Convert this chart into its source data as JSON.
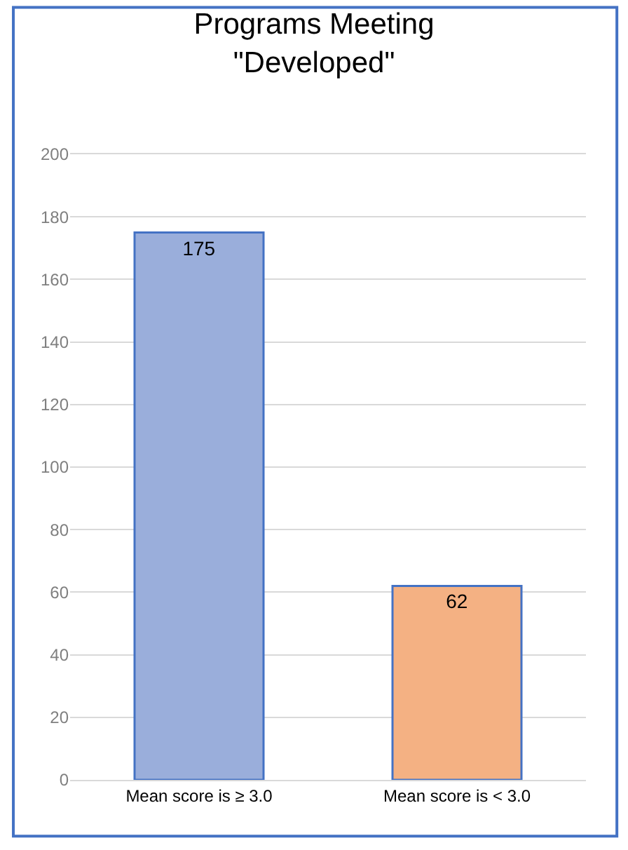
{
  "chart_data": {
    "type": "bar",
    "title": "Programs Meeting\n\"Developed\"",
    "categories": [
      "Mean score is ≥ 3.0",
      "Mean score is < 3.0"
    ],
    "values": [
      175,
      62
    ],
    "colors": [
      "#9aaedb",
      "#f4b183"
    ],
    "ylim": [
      0,
      200
    ],
    "yticks": [
      0,
      20,
      40,
      60,
      80,
      100,
      120,
      140,
      160,
      180,
      200
    ],
    "grid": "y",
    "data_labels": true,
    "legend": false
  }
}
